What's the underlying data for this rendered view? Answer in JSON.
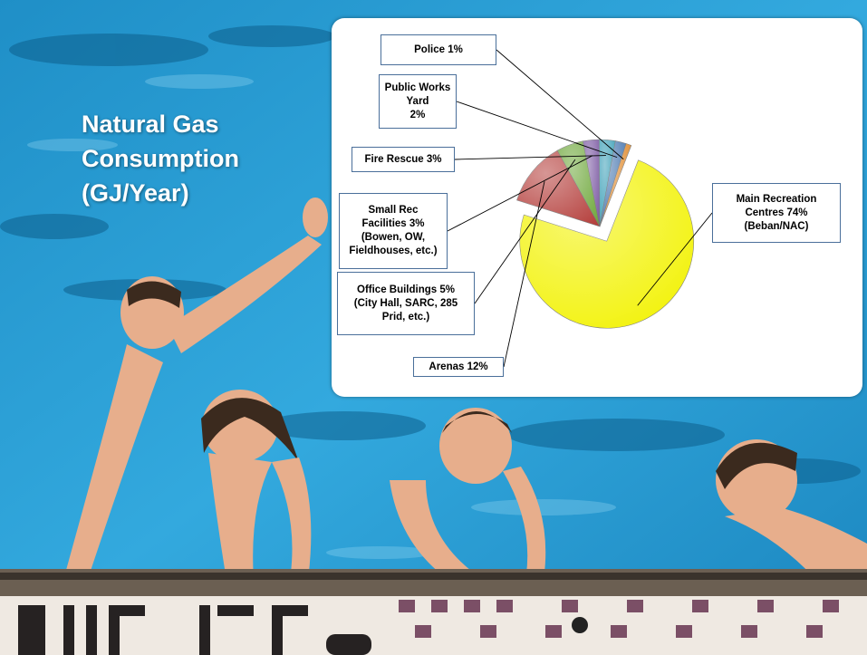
{
  "slide": {
    "title_lines": [
      "Natural Gas",
      "Consumption",
      "(GJ/Year)"
    ]
  },
  "colors": {
    "slice_main": "#f2f200",
    "slice_arenas": "#b5403d",
    "slice_office": "#6fa83c",
    "slice_small_rec": "#7c5aa3",
    "slice_fire": "#3da0b8",
    "slice_public_works": "#4a78b0",
    "slice_police": "#e08a2c",
    "label_border": "#4a6f9a",
    "pool_water": "#2fa3d6",
    "chart_panel": "#ffffff"
  },
  "chart_data": {
    "type": "pie",
    "exploded": true,
    "slices": [
      {
        "key": "main",
        "lines": [
          "Main Recreation",
          "Centres 74%",
          "(Beban/NAC)"
        ],
        "value": 74,
        "color": "#f2f200"
      },
      {
        "key": "arenas",
        "lines": [
          "Arenas  12%"
        ],
        "value": 12,
        "color": "#b5403d"
      },
      {
        "key": "office",
        "lines": [
          "Office Buildings 5%",
          "(City Hall, SARC, 285",
          "Prid, etc.)"
        ],
        "value": 5,
        "color": "#6fa83c"
      },
      {
        "key": "small_rec",
        "lines": [
          "Small Rec",
          "Facilities  3%",
          "(Bowen, OW,",
          "Fieldhouses, etc.)"
        ],
        "value": 3,
        "color": "#7c5aa3"
      },
      {
        "key": "fire",
        "lines": [
          "Fire Rescue 3%"
        ],
        "value": 3,
        "color": "#3da0b8"
      },
      {
        "key": "public_works",
        "lines": [
          "Public Works",
          "Yard",
          "2%"
        ],
        "value": 2,
        "color": "#4a78b0"
      },
      {
        "key": "police",
        "lines": [
          "Police  1%"
        ],
        "value": 1,
        "color": "#e08a2c"
      }
    ]
  }
}
